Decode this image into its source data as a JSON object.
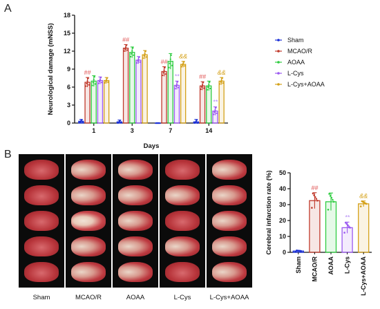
{
  "panels": {
    "a_label": "A",
    "b_label": "B"
  },
  "chart_data": [
    {
      "type": "bar",
      "title": "",
      "xlabel": "Days",
      "ylabel": "Neurological damage (mNSS)",
      "ylim": [
        0,
        18
      ],
      "yticks": [
        "0",
        "3",
        "6",
        "9",
        "12",
        "15",
        "18"
      ],
      "categories": [
        "1",
        "3",
        "7",
        "14"
      ],
      "series": [
        {
          "name": "Sham",
          "color": "#1a2fd6",
          "values": [
            0.3,
            0.2,
            0.0,
            0.2
          ],
          "errors": [
            0.3,
            0.3,
            0.0,
            0.4
          ]
        },
        {
          "name": "MCAO/R",
          "color": "#c0392b",
          "values": [
            6.8,
            12.5,
            8.6,
            6.2
          ],
          "errors": [
            0.8,
            0.6,
            0.8,
            0.7
          ]
        },
        {
          "name": "AOAA",
          "color": "#2ecc40",
          "values": [
            7.0,
            11.8,
            10.3,
            6.2
          ],
          "errors": [
            0.9,
            0.9,
            1.3,
            0.8
          ]
        },
        {
          "name": "L-Cys",
          "color": "#9b59f0",
          "values": [
            7.1,
            10.5,
            6.3,
            2.0
          ],
          "errors": [
            0.6,
            0.6,
            0.7,
            0.7
          ]
        },
        {
          "name": "L-Cys+AOAA",
          "color": "#d4a017",
          "values": [
            7.1,
            11.4,
            9.8,
            7.0
          ],
          "errors": [
            0.5,
            0.7,
            0.5,
            0.6
          ]
        }
      ],
      "annotations": [
        {
          "text": "##",
          "category": "1",
          "series": "MCAO/R",
          "color": "#e05555"
        },
        {
          "text": "##",
          "category": "3",
          "series": "MCAO/R",
          "color": "#e05555"
        },
        {
          "text": "##",
          "category": "7",
          "series": "MCAO/R",
          "color": "#e05555"
        },
        {
          "text": "**",
          "category": "7",
          "series": "L-Cys",
          "color": "#b58cf5"
        },
        {
          "text": "&&",
          "category": "7",
          "series": "L-Cys+AOAA",
          "color": "#d4a017"
        },
        {
          "text": "##",
          "category": "14",
          "series": "MCAO/R",
          "color": "#e05555"
        },
        {
          "text": "**",
          "category": "14",
          "series": "L-Cys",
          "color": "#b58cf5"
        },
        {
          "text": "&&",
          "category": "14",
          "series": "L-Cys+AOAA",
          "color": "#d4a017"
        }
      ],
      "legend": [
        "Sham",
        "MCAO/R",
        "AOAA",
        "L-Cys",
        "L-Cys+AOAA"
      ],
      "legend_position": "right"
    },
    {
      "type": "bar",
      "title": "",
      "xlabel": "",
      "ylabel": "Cerebral infarction rate (%)",
      "ylim": [
        0,
        50
      ],
      "yticks": [
        "0",
        "10",
        "20",
        "30",
        "40",
        "50"
      ],
      "categories": [
        "Sham",
        "MCAO/R",
        "AOAA",
        "L-Cys",
        "L-Cys+AOAA"
      ],
      "colors": [
        "#1a2fd6",
        "#c0392b",
        "#2ecc40",
        "#9b59f0",
        "#d4a017"
      ],
      "values": [
        0.8,
        32.5,
        31.8,
        15.5,
        30.5
      ],
      "errors": [
        0.4,
        5.0,
        5.5,
        3.5,
        1.8
      ],
      "annotations": [
        {
          "text": "##",
          "category": "MCAO/R",
          "color": "#e05555"
        },
        {
          "text": "**",
          "category": "L-Cys",
          "color": "#b58cf5"
        },
        {
          "text": "&&",
          "category": "L-Cys+AOAA",
          "color": "#d4a017"
        }
      ]
    }
  ],
  "photo_columns": [
    "Sham",
    "MCAO/R",
    "AOAA",
    "L-Cys",
    "L-Cys+AOAA"
  ]
}
